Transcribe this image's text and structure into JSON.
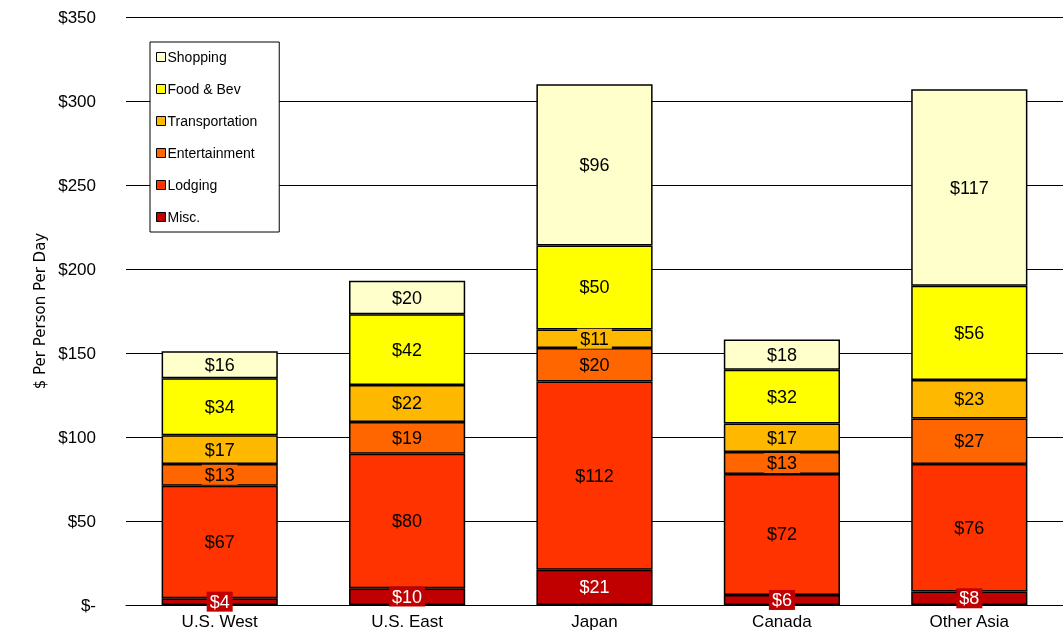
{
  "chart_data": {
    "type": "bar",
    "stacked": true,
    "ylabel": "$ Per Person Per Day",
    "categories": [
      "U.S. West",
      "U.S. East",
      "Japan",
      "Canada",
      "Other Asia"
    ],
    "series": [
      {
        "name": "Misc.",
        "color": "#c00000",
        "values": [
          4,
          10,
          21,
          6,
          8
        ],
        "value_labels": [
          "$4",
          "$10",
          "$21",
          "$6",
          "$8"
        ]
      },
      {
        "name": "Lodging",
        "color": "#ff3300",
        "values": [
          67,
          80,
          112,
          72,
          76
        ],
        "value_labels": [
          "$67",
          "$80",
          "$112",
          "$72",
          "$76"
        ]
      },
      {
        "name": "Entertainment",
        "color": "#ff6600",
        "values": [
          13,
          19,
          20,
          13,
          27
        ],
        "value_labels": [
          "$13",
          "$19",
          "$20",
          "$13",
          "$27"
        ]
      },
      {
        "name": "Transportation",
        "color": "#ffb800",
        "values": [
          17,
          22,
          11,
          17,
          23
        ],
        "value_labels": [
          "$17",
          "$22",
          "$11",
          "$17",
          "$23"
        ]
      },
      {
        "name": "Food & Bev",
        "color": "#ffff00",
        "values": [
          34,
          42,
          50,
          32,
          56
        ],
        "value_labels": [
          "$34",
          "$42",
          "$50",
          "$32",
          "$56"
        ]
      },
      {
        "name": "Shopping",
        "color": "#ffffcc",
        "values": [
          16,
          20,
          96,
          18,
          117
        ],
        "value_labels": [
          "$16",
          "$20",
          "$96",
          "$18",
          "$117"
        ]
      }
    ],
    "ylim": [
      0,
      350
    ],
    "yticks": [
      {
        "value": 0,
        "label": "$-"
      },
      {
        "value": 50,
        "label": "$50"
      },
      {
        "value": 100,
        "label": "$100"
      },
      {
        "value": 150,
        "label": "$150"
      },
      {
        "value": 200,
        "label": "$200"
      },
      {
        "value": 250,
        "label": "$250"
      },
      {
        "value": 300,
        "label": "$300"
      },
      {
        "value": 350,
        "label": "$350"
      }
    ],
    "grid": "y",
    "legend": "top left"
  }
}
